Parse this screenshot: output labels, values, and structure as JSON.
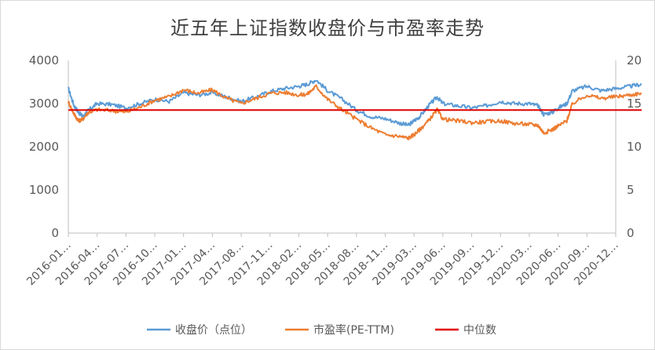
{
  "chart_data": {
    "type": "line",
    "title": "近五年上证指数收盘价与市盈率走势",
    "x_labels": [
      "2016-01…",
      "2016-04…",
      "2016-07…",
      "2016-10…",
      "2017-01…",
      "2017-04…",
      "2017-08…",
      "2017-11…",
      "2018-02…",
      "2018-05…",
      "2018-08…",
      "2018-11…",
      "2019-03…",
      "2019-06…",
      "2019-09…",
      "2019-12…",
      "2020-03…",
      "2020-06…",
      "2020-09…",
      "2020-12…"
    ],
    "y_left": {
      "range": [
        0,
        4000
      ],
      "ticks": [
        "0",
        "1000",
        "2000",
        "3000",
        "4000"
      ]
    },
    "y_right": {
      "range": [
        0,
        20
      ],
      "ticks": [
        "0",
        "5",
        "10",
        "15",
        "20"
      ]
    },
    "grid": false,
    "legend_position": "bottom",
    "series": [
      {
        "name": "收盘价（点位）",
        "axis": "left",
        "color": "#5b9bd5",
        "t": [
          0,
          0.2,
          0.35,
          0.5,
          0.7,
          1.0,
          1.5,
          2.0,
          2.5,
          3.0,
          3.5,
          4.0,
          4.5,
          5.0,
          5.5,
          6.0,
          6.5,
          7.0,
          7.5,
          8.0,
          8.3,
          8.6,
          9.0,
          9.5,
          10.0,
          10.5,
          11.0,
          11.5,
          11.8,
          12.0,
          12.2,
          12.5,
          12.8,
          13.0,
          13.5,
          14.0,
          14.5,
          15.0,
          15.5,
          16.0,
          16.3,
          16.5,
          16.8,
          17.0,
          17.3,
          17.5,
          18.0,
          18.5,
          19.0,
          19.5,
          19.9
        ],
        "values": [
          3350,
          2950,
          2800,
          2700,
          2850,
          3000,
          2980,
          2900,
          3000,
          3100,
          3050,
          3250,
          3200,
          3250,
          3150,
          3050,
          3150,
          3280,
          3350,
          3400,
          3450,
          3550,
          3300,
          3100,
          2850,
          2700,
          2650,
          2550,
          2500,
          2600,
          2700,
          2950,
          3150,
          3000,
          2950,
          2900,
          2950,
          3050,
          3000,
          3000,
          2950,
          2750,
          2800,
          2900,
          3000,
          3300,
          3400,
          3300,
          3350,
          3400,
          3450
        ]
      },
      {
        "name": "市盈率(PE-TTM)",
        "axis": "right",
        "color": "#ed7d31",
        "t": [
          0,
          0.2,
          0.35,
          0.5,
          0.7,
          1.0,
          1.5,
          2.0,
          2.5,
          3.0,
          3.5,
          4.0,
          4.5,
          5.0,
          5.5,
          6.0,
          6.5,
          7.0,
          7.5,
          8.0,
          8.3,
          8.6,
          9.0,
          9.5,
          10.0,
          10.5,
          11.0,
          11.5,
          11.8,
          12.0,
          12.2,
          12.5,
          12.8,
          13.0,
          13.5,
          14.0,
          14.5,
          15.0,
          15.5,
          16.0,
          16.3,
          16.5,
          16.8,
          17.0,
          17.3,
          17.5,
          18.0,
          18.5,
          19.0,
          19.5,
          19.9
        ],
        "values": [
          15.2,
          13.8,
          13.0,
          13.2,
          14.0,
          14.3,
          14.2,
          14.0,
          14.6,
          15.4,
          15.8,
          16.6,
          16.2,
          16.6,
          15.6,
          15.0,
          15.6,
          16.2,
          16.3,
          16.0,
          16.1,
          17.0,
          15.5,
          14.3,
          13.2,
          12.2,
          11.4,
          11.2,
          11.0,
          11.4,
          12.0,
          13.0,
          14.3,
          13.2,
          13.0,
          12.8,
          12.9,
          13.0,
          12.7,
          12.6,
          12.5,
          11.6,
          12.0,
          12.4,
          13.0,
          15.0,
          16.0,
          15.6,
          15.8,
          16.0,
          16.2
        ]
      },
      {
        "name": "中位数",
        "axis": "left",
        "color": "#e00000",
        "t": [
          0,
          19.9
        ],
        "values": [
          2850,
          2850
        ]
      }
    ]
  }
}
